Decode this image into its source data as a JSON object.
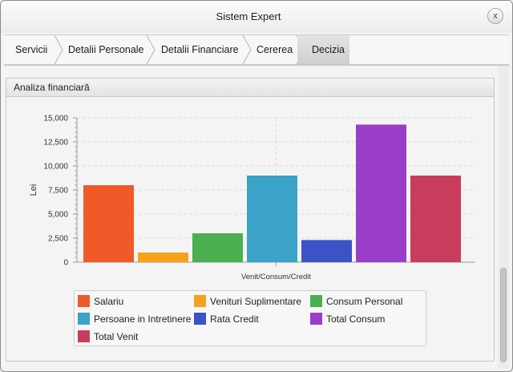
{
  "window": {
    "title": "Sistem Expert",
    "close_label": "x"
  },
  "breadcrumb": {
    "items": [
      {
        "label": "Servicii"
      },
      {
        "label": "Detalii Personale"
      },
      {
        "label": "Detalii Financiare"
      },
      {
        "label": "Cererea"
      },
      {
        "label": "Decizia"
      }
    ],
    "active_index": 4
  },
  "section": {
    "title": "Analiza financiară"
  },
  "chart_data": {
    "type": "bar",
    "categories": [
      "Venit/Consum/Credit"
    ],
    "xlabel": "Venit/Consum/Credit",
    "ylabel": "Lei",
    "ylim": [
      0,
      15000
    ],
    "yticks": [
      "0",
      "2,500",
      "5,000",
      "7,500",
      "10,000",
      "12,500",
      "15,000"
    ],
    "grid": true,
    "legend_position": "bottom",
    "series": [
      {
        "name": "Salariu",
        "values": [
          8000
        ],
        "color": "#f05a28"
      },
      {
        "name": "Venituri Suplimentare",
        "values": [
          1000
        ],
        "color": "#f6a21c"
      },
      {
        "name": "Consum Personal",
        "values": [
          3000
        ],
        "color": "#4caf50"
      },
      {
        "name": "Persoane in Intretinere",
        "values": [
          9000
        ],
        "color": "#3aa3c7"
      },
      {
        "name": "Rata Credit",
        "values": [
          2300
        ],
        "color": "#3b53c6"
      },
      {
        "name": "Total Consum",
        "values": [
          14300
        ],
        "color": "#9a3ec9"
      },
      {
        "name": "Total Venit",
        "values": [
          9000
        ],
        "color": "#c83c5e"
      }
    ]
  }
}
